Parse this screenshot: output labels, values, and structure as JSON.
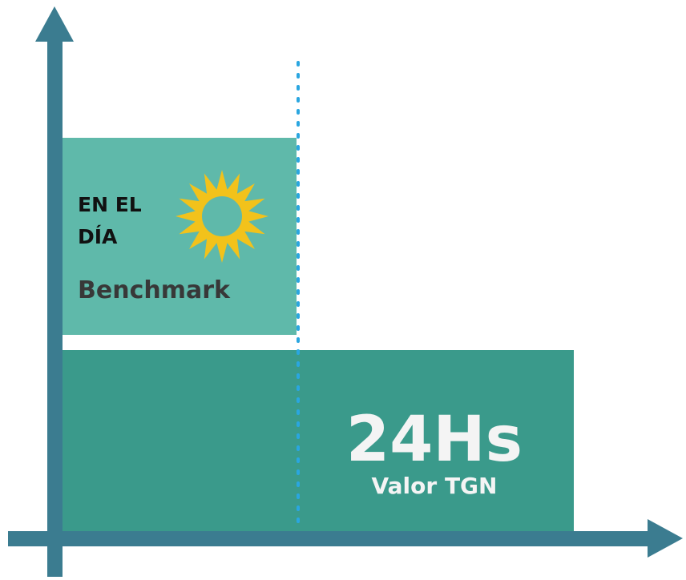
{
  "day_box": {
    "title_line1": "EN EL",
    "title_line2": "DÍA",
    "label": "Benchmark"
  },
  "tgn_box": {
    "value": "24Hs",
    "label": "Valor TGN"
  }
}
